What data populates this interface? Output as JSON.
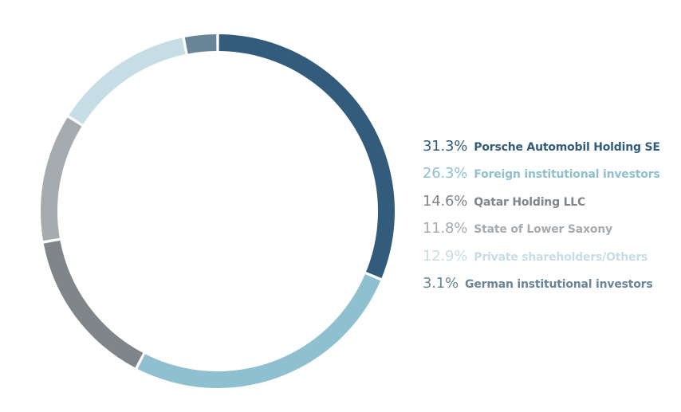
{
  "chart_data": {
    "type": "pie",
    "donut": true,
    "categories": [
      "Porsche Automobil Holding SE",
      "Foreign institutional investors",
      "Qatar Holding LLC",
      "State of Lower Saxony",
      "Private shareholders/Others",
      "German institutional investors"
    ],
    "values": [
      31.3,
      26.3,
      14.6,
      11.8,
      12.9,
      3.1
    ],
    "value_labels": [
      "31.3%",
      "26.3%",
      "14.6%",
      "11.8%",
      "12.9%",
      "3.1%"
    ],
    "colors": [
      "#335c7c",
      "#8fc0d0",
      "#7f8588",
      "#a6abb0",
      "#c6dde6",
      "#6a8597"
    ],
    "unit": "%",
    "start_angle": "12 o'clock",
    "direction": "clockwise",
    "legend_position": "right"
  }
}
